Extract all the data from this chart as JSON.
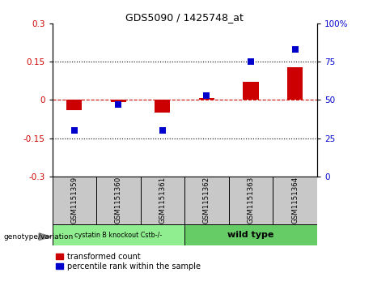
{
  "title": "GDS5090 / 1425748_at",
  "samples": [
    "GSM1151359",
    "GSM1151360",
    "GSM1151361",
    "GSM1151362",
    "GSM1151363",
    "GSM1151364"
  ],
  "red_values": [
    -0.04,
    -0.008,
    -0.05,
    0.008,
    0.07,
    0.13
  ],
  "blue_values": [
    30,
    47,
    30,
    53,
    75,
    83
  ],
  "ylim_left": [
    -0.3,
    0.3
  ],
  "ylim_right": [
    0,
    100
  ],
  "yticks_left": [
    -0.3,
    -0.15,
    0,
    0.15,
    0.3
  ],
  "yticks_right": [
    0,
    25,
    50,
    75,
    100
  ],
  "hlines": [
    0.15,
    -0.15
  ],
  "red_color": "#cc0000",
  "blue_color": "#0000cc",
  "dashed_zero_color": "#cc0000",
  "group1_label": "cystatin B knockout Cstb-/-",
  "group2_label": "wild type",
  "group1_color": "#90ee90",
  "group2_color": "#66cc66",
  "group_bg_color": "#c8c8c8",
  "bar_width": 0.35,
  "blue_marker_size": 40,
  "legend_label_red": "transformed count",
  "legend_label_blue": "percentile rank within the sample",
  "genotype_label": "genotype/variation",
  "group1_indices": [
    0,
    1,
    2
  ],
  "group2_indices": [
    3,
    4,
    5
  ]
}
